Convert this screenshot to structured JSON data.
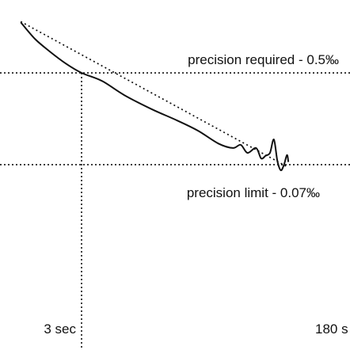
{
  "chart_data": {
    "type": "line",
    "title": "",
    "xlabel": "",
    "ylabel": "",
    "x_scale": "log",
    "y_scale": "log",
    "grid": false,
    "legend": "none",
    "annotations": {
      "required": "precision required - 0.5‰",
      "limit": "precision limit  - 0.07‰"
    },
    "reference_lines": {
      "required_y": 0.5,
      "limit_y": 0.07,
      "marker_x": 3
    },
    "tick_labels": {
      "left": "3 sec",
      "right": "180 s"
    },
    "series": [
      {
        "style": "solid",
        "points": [
          [
            0.9,
            1.48
          ],
          [
            1.2,
            1.03
          ],
          [
            1.6,
            0.79
          ],
          [
            2.2,
            0.61
          ],
          [
            3.0,
            0.5
          ],
          [
            4.5,
            0.42
          ],
          [
            7,
            0.31
          ],
          [
            12,
            0.23
          ],
          [
            20,
            0.18
          ],
          [
            30,
            0.145
          ],
          [
            45,
            0.11
          ],
          [
            60,
            0.1
          ],
          [
            70,
            0.107
          ],
          [
            80,
            0.09
          ],
          [
            95,
            0.1
          ],
          [
            105,
            0.08
          ],
          [
            115,
            0.085
          ],
          [
            125,
            0.09
          ],
          [
            135,
            0.12
          ],
          [
            145,
            0.075
          ],
          [
            155,
            0.062
          ],
          [
            165,
            0.07
          ],
          [
            175,
            0.086
          ],
          [
            180,
            0.074
          ]
        ]
      },
      {
        "style": "dotted",
        "points": [
          [
            0.9,
            1.5
          ],
          [
            180,
            0.066
          ]
        ]
      }
    ]
  },
  "colors": {
    "line": "#111111",
    "background": "#ffffff"
  }
}
